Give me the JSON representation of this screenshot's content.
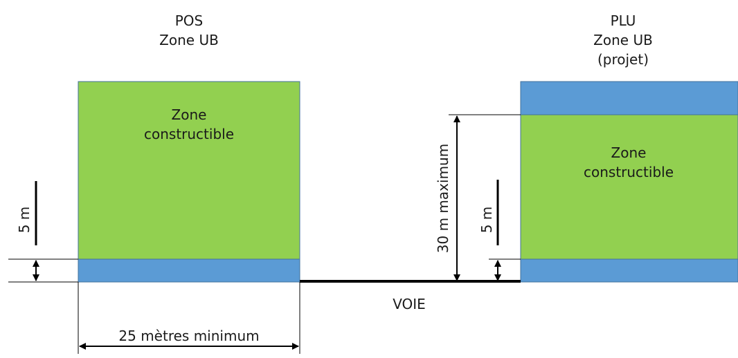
{
  "colors": {
    "green": "#92D050",
    "blue": "#5B9BD5",
    "outline": "#41719C",
    "line": "#000000"
  },
  "left_title": {
    "line1": "POS",
    "line2": "Zone UB"
  },
  "right_title": {
    "line1": "PLU",
    "line2": "Zone UB",
    "line3": "(projet)"
  },
  "left_zone": {
    "line1": "Zone",
    "line2": "constructible"
  },
  "right_zone": {
    "line1": "Zone",
    "line2": "constructible"
  },
  "road_label": "VOIE",
  "width_label": "25 mètres minimum",
  "left_setback_label": "5 m",
  "right_setback_label": "5 m",
  "depth_label": "30 m maximum"
}
